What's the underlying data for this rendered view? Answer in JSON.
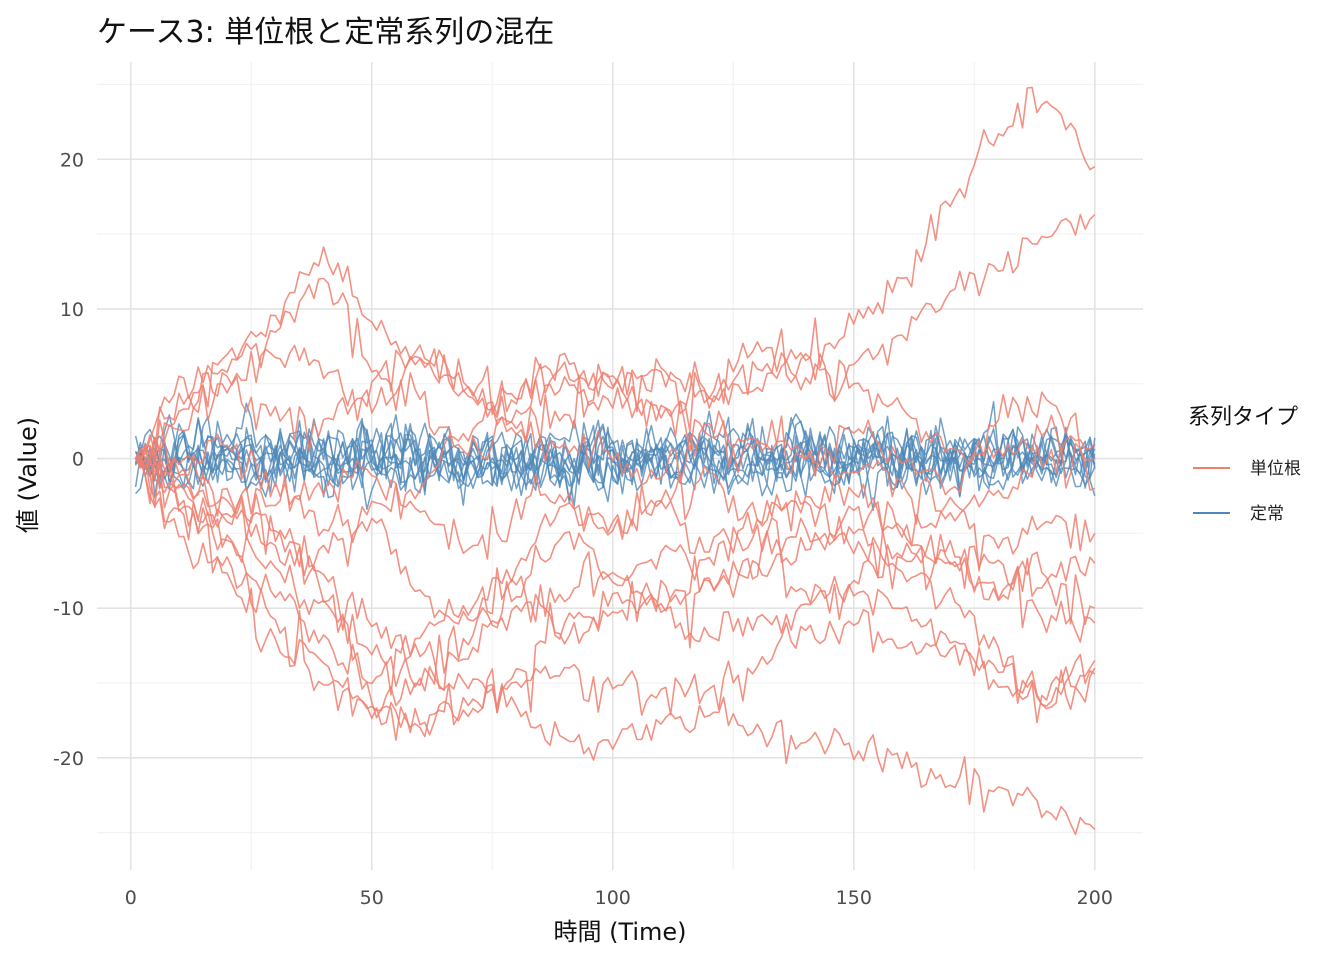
{
  "chart_data": {
    "type": "line",
    "title": "ケース3: 単位根と定常系列の混在",
    "xlabel": "時間 (Time)",
    "ylabel": "値 (Value)",
    "xlim": [
      -7,
      210
    ],
    "ylim": [
      -27.5,
      26.5
    ],
    "xticks": [
      0,
      50,
      100,
      150,
      200
    ],
    "yticks": [
      -20,
      -10,
      0,
      10,
      20
    ],
    "xtick_labels": [
      "0",
      "50",
      "100",
      "150",
      "200"
    ],
    "ytick_labels": [
      "-20",
      "-10",
      "0",
      "10",
      "20"
    ],
    "grid": true,
    "legend": {
      "title": "系列タイプ",
      "position": "right",
      "entries": [
        {
          "label": "単位根",
          "color": "#f07f6e"
        },
        {
          "label": "定常",
          "color": "#4f88b8"
        }
      ]
    },
    "series_groups": [
      {
        "name": "単位根",
        "color": "#f07f6e",
        "x": [
          1,
          10,
          20,
          30,
          40,
          50,
          60,
          70,
          80,
          90,
          100,
          110,
          120,
          130,
          140,
          150,
          160,
          170,
          180,
          190,
          200
        ],
        "series": [
          {
            "values": [
              0,
              5,
              6,
              8.5,
              12,
              6,
              4,
              0,
              3,
              5,
              4,
              3,
              4,
              6,
              7,
              9,
              12,
              17,
              22,
              24,
              19.5
            ]
          },
          {
            "values": [
              0,
              4,
              5,
              3,
              2,
              5,
              7,
              5,
              2,
              3,
              5,
              6,
              4,
              8,
              5,
              6,
              8,
              11,
              13,
              15,
              16.3
            ]
          },
          {
            "values": [
              0,
              3,
              7,
              9,
              13.5,
              9,
              7,
              4,
              2,
              1,
              0,
              -1,
              2,
              1,
              0,
              2,
              0,
              -2,
              3,
              4,
              0
            ]
          },
          {
            "values": [
              0,
              2,
              5,
              7,
              6,
              3,
              7,
              5,
              4,
              7,
              5,
              6,
              4,
              5,
              7,
              5,
              3,
              1,
              0,
              2,
              1
            ]
          },
          {
            "values": [
              0,
              -1,
              1,
              -2,
              -5,
              -3,
              -2,
              2,
              4,
              6,
              5,
              3,
              2,
              1,
              0,
              -1,
              -2,
              -4,
              -2,
              0,
              -2
            ]
          },
          {
            "values": [
              0,
              -2,
              -4,
              -3,
              -2,
              -1,
              -4,
              -6,
              -3,
              -2,
              -5,
              -3,
              -1,
              -4,
              -3,
              -2,
              -5,
              -3,
              -6,
              -4,
              -5
            ]
          },
          {
            "values": [
              0,
              -3,
              -5,
              -7,
              -10,
              -13,
              -15,
              -12,
              -9,
              -5,
              -8,
              -6,
              -7,
              -5,
              -6,
              -4,
              -5,
              -7,
              -9,
              -8,
              -7
            ]
          },
          {
            "values": [
              0,
              -4,
              -6,
              -9,
              -12,
              -16,
              -18,
              -16,
              -14,
              -11,
              -9,
              -10,
              -8,
              -7,
              -5,
              -6,
              -8,
              -9,
              -13,
              -17,
              -14
            ]
          },
          {
            "values": [
              0,
              -5,
              -8,
              -12,
              -15,
              -17,
              -15,
              -13,
              -10,
              -9,
              -8,
              -10,
              -12,
              -11,
              -10,
              -9,
              -10,
              -12,
              -14,
              -16,
              -13.5
            ]
          },
          {
            "values": [
              0,
              -2,
              -3,
              -5,
              -8,
              -11,
              -13,
              -15,
              -17,
              -19,
              -19,
              -18,
              -17,
              -18,
              -19,
              -19.5,
              -20,
              -22,
              -22,
              -24,
              -24.8
            ]
          },
          {
            "values": [
              0,
              -3,
              -7,
              -11,
              -14,
              -17,
              -18,
              -17,
              -15,
              -14,
              -15,
              -16,
              -15,
              -14,
              -12,
              -11,
              -12,
              -13,
              -15,
              -16,
              -14.4
            ]
          },
          {
            "values": [
              0,
              0,
              -3,
              -5,
              -6,
              -4,
              -9,
              -11,
              -7,
              -3,
              -4,
              -3,
              -6,
              -4,
              -3,
              -5,
              -6,
              -7,
              -9,
              -11,
              -11
            ]
          },
          {
            "values": [
              0,
              -1,
              -4,
              -6,
              -9,
              -15,
              -12,
              -10,
              -8,
              -12,
              -10,
              -9,
              -8,
              -7,
              -9,
              -8,
              -7,
              -6,
              -7,
              -8,
              -10
            ]
          }
        ]
      },
      {
        "name": "定常",
        "color": "#4f88b8",
        "x_range": [
          1,
          200
        ],
        "count": 10,
        "value_range": [
          -3.5,
          3.8
        ]
      }
    ]
  }
}
